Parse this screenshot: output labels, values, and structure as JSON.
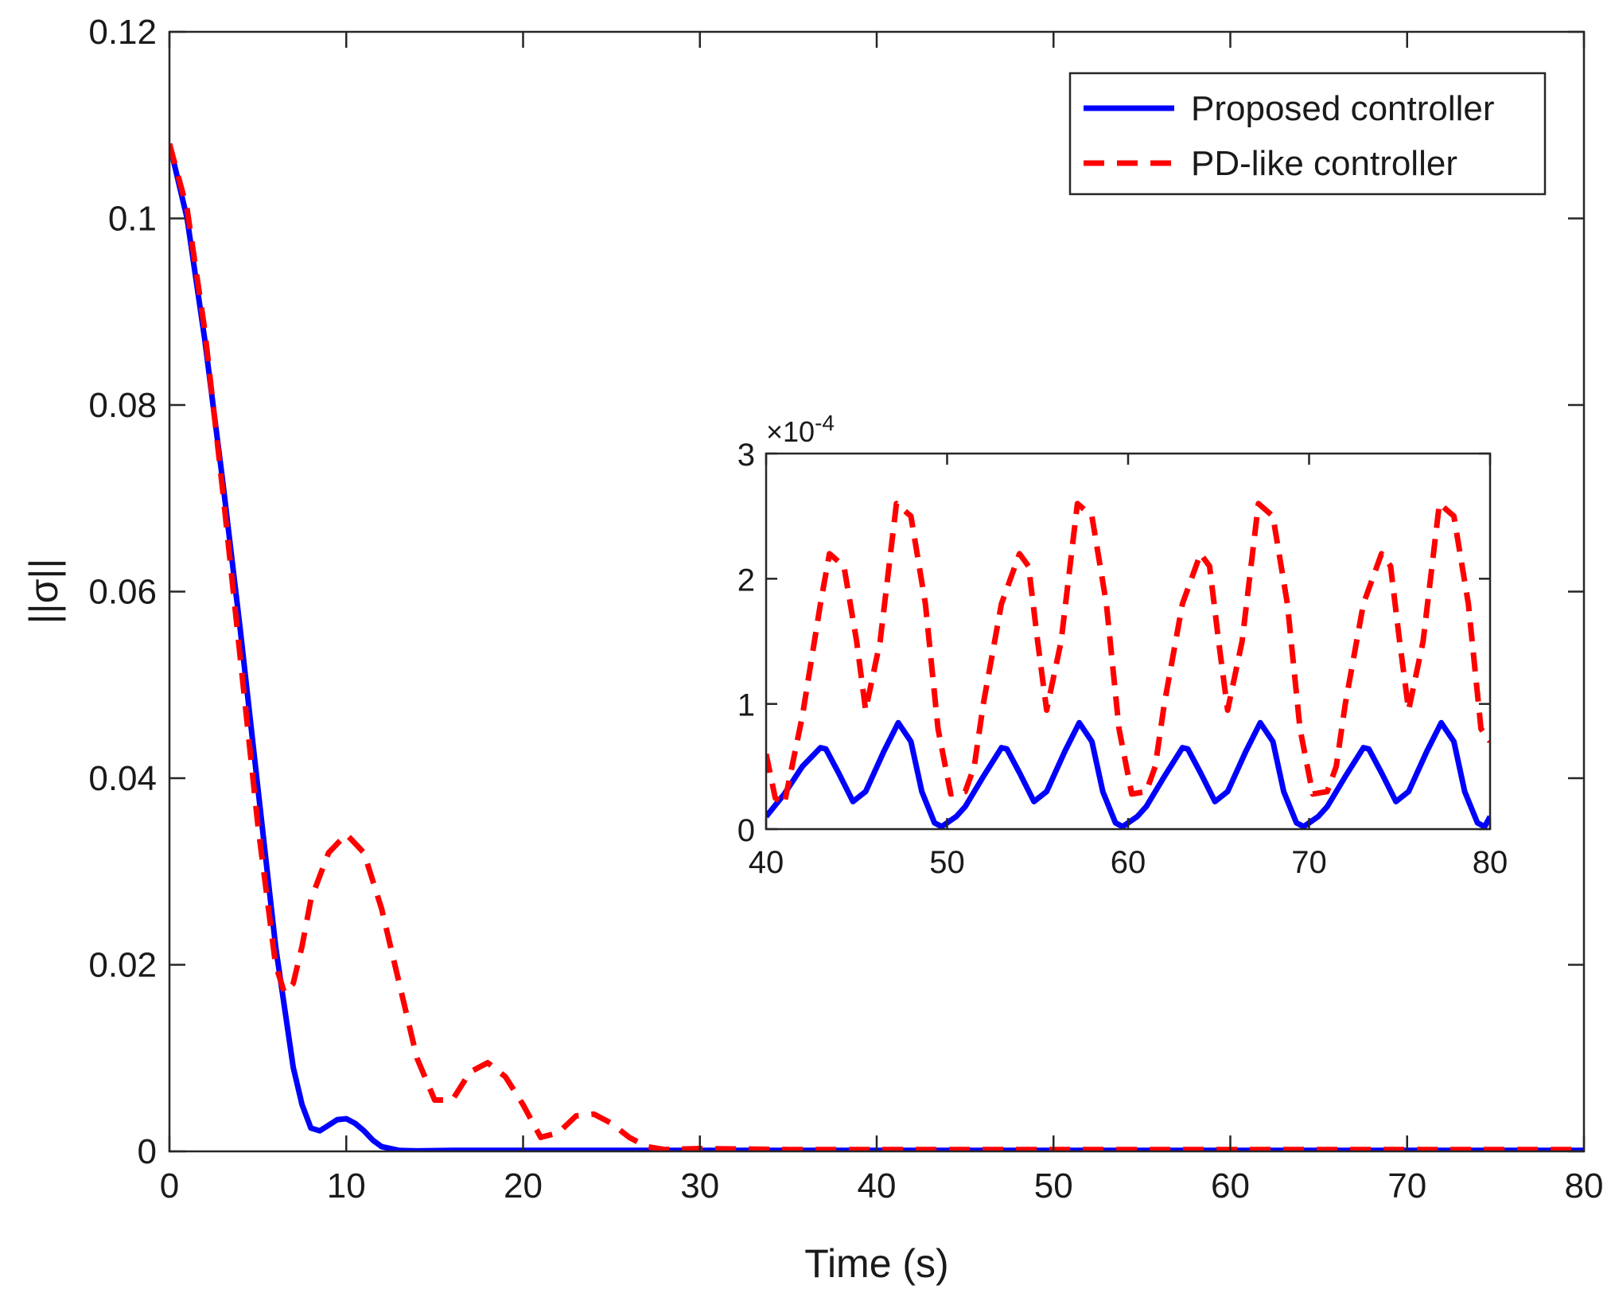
{
  "chart_data": [
    {
      "id": "main",
      "type": "line",
      "xlabel": "Time (s)",
      "ylabel": "||σ||",
      "xlim": [
        0,
        80
      ],
      "ylim": [
        0,
        0.12
      ],
      "xticks": [
        0,
        10,
        20,
        30,
        40,
        50,
        60,
        70,
        80
      ],
      "yticks": [
        0,
        0.02,
        0.04,
        0.06,
        0.08,
        0.1,
        0.12
      ],
      "xtick_labels": [
        "0",
        "10",
        "20",
        "30",
        "40",
        "50",
        "60",
        "70",
        "80"
      ],
      "ytick_labels": [
        "0",
        "0.02",
        "0.04",
        "0.06",
        "0.08",
        "0.1",
        "0.12"
      ],
      "grid": false,
      "legend": {
        "position": "top-right",
        "entries": [
          "Proposed controller",
          "PD-like controller"
        ]
      },
      "series": [
        {
          "name": "Proposed controller",
          "color": "#0000ff",
          "style": "solid",
          "x": [
            0,
            1,
            2,
            3,
            4,
            5,
            6,
            7,
            7.5,
            8,
            8.5,
            9,
            9.5,
            10,
            10.5,
            11,
            11.5,
            12,
            13,
            14,
            16,
            20,
            30,
            40,
            50,
            60,
            70,
            80
          ],
          "y": [
            0.108,
            0.1,
            0.087,
            0.072,
            0.056,
            0.039,
            0.022,
            0.009,
            0.005,
            0.0025,
            0.0022,
            0.0028,
            0.0034,
            0.0035,
            0.003,
            0.0022,
            0.0012,
            0.0005,
            0.0001,
            5e-05,
            0.0001,
            0.0001,
            0.0001,
            0.0001,
            0.0001,
            0.0001,
            0.0001,
            0.0001
          ]
        },
        {
          "name": "PD-like controller",
          "color": "#ff0000",
          "style": "dashed",
          "x": [
            0,
            1,
            2,
            3,
            4,
            5,
            6,
            6.5,
            7,
            7.5,
            8,
            9,
            10,
            11,
            12,
            13,
            14,
            15,
            16,
            17,
            18,
            19,
            20,
            21,
            22,
            23,
            24,
            25,
            26,
            27,
            28,
            30,
            35,
            40,
            50,
            60,
            70,
            80
          ],
          "y": [
            0.108,
            0.101,
            0.088,
            0.071,
            0.053,
            0.035,
            0.02,
            0.017,
            0.018,
            0.022,
            0.027,
            0.032,
            0.034,
            0.032,
            0.026,
            0.018,
            0.01,
            0.0055,
            0.0055,
            0.0085,
            0.0095,
            0.008,
            0.005,
            0.0015,
            0.002,
            0.0038,
            0.004,
            0.003,
            0.0015,
            0.0005,
            0.0002,
            0.0003,
            0.0002,
            0.0002,
            0.0002,
            0.0002,
            0.0002,
            0.0002
          ]
        }
      ]
    },
    {
      "id": "inset",
      "type": "line",
      "xlabel": "",
      "ylabel": "",
      "xlim": [
        40,
        80
      ],
      "ylim": [
        0,
        3
      ],
      "y_scale_label": "×10-4",
      "y_scale_base": "×10",
      "y_scale_exp": "-4",
      "xticks": [
        40,
        50,
        60,
        70,
        80
      ],
      "yticks": [
        0,
        1,
        2,
        3
      ],
      "xtick_labels": [
        "40",
        "50",
        "60",
        "70",
        "80"
      ],
      "ytick_labels": [
        "0",
        "1",
        "2",
        "3"
      ],
      "grid": false,
      "series": [
        {
          "name": "Proposed controller",
          "color": "#0000ff",
          "style": "solid",
          "x": [
            40,
            41,
            42,
            43,
            43.3,
            44,
            44.8,
            45.5,
            46.5,
            47.3,
            48,
            48.6,
            49.3,
            49.7,
            50.5,
            51,
            52,
            53,
            53.3,
            54,
            54.8,
            55.5,
            56.5,
            57.3,
            58,
            58.6,
            59.3,
            59.7,
            60.5,
            61,
            62,
            63,
            63.3,
            64,
            64.8,
            65.5,
            66.5,
            67.3,
            68,
            68.6,
            69.3,
            69.7,
            70.5,
            71,
            72,
            73,
            73.3,
            74,
            74.8,
            75.5,
            76.5,
            77.3,
            78,
            78.6,
            79.3,
            79.7,
            80
          ],
          "y": [
            0.1,
            0.28,
            0.5,
            0.65,
            0.64,
            0.45,
            0.22,
            0.3,
            0.62,
            0.85,
            0.7,
            0.3,
            0.05,
            0.02,
            0.1,
            0.18,
            0.42,
            0.65,
            0.64,
            0.45,
            0.22,
            0.3,
            0.62,
            0.85,
            0.7,
            0.3,
            0.05,
            0.02,
            0.1,
            0.18,
            0.42,
            0.65,
            0.64,
            0.45,
            0.22,
            0.3,
            0.62,
            0.85,
            0.7,
            0.3,
            0.05,
            0.02,
            0.1,
            0.18,
            0.42,
            0.65,
            0.64,
            0.45,
            0.22,
            0.3,
            0.62,
            0.85,
            0.7,
            0.3,
            0.05,
            0.02,
            0.1
          ]
        },
        {
          "name": "PD-like controller",
          "color": "#ff0000",
          "style": "dashed",
          "x": [
            40,
            40.5,
            41,
            42,
            43,
            43.5,
            44.3,
            45,
            45.5,
            46.3,
            47.2,
            48,
            48.8,
            49.5,
            50.2,
            51,
            51.5,
            52,
            53,
            54,
            54.5,
            55,
            55.5,
            56.3,
            57.2,
            58,
            58.8,
            59.5,
            60.2,
            61,
            61.5,
            62,
            63,
            64,
            64.5,
            65,
            65.5,
            66.3,
            67.2,
            68,
            68.8,
            69.5,
            70.2,
            71,
            71.5,
            72,
            73,
            74,
            74.5,
            75,
            75.5,
            76.3,
            77.2,
            78,
            78.8,
            79.5,
            80
          ],
          "y": [
            0.6,
            0.25,
            0.2,
            0.9,
            1.8,
            2.2,
            2.1,
            1.5,
            0.95,
            1.5,
            2.6,
            2.5,
            1.8,
            0.8,
            0.28,
            0.3,
            0.5,
            1.0,
            1.8,
            2.2,
            2.1,
            1.5,
            0.95,
            1.5,
            2.6,
            2.5,
            1.8,
            0.8,
            0.28,
            0.3,
            0.5,
            1.0,
            1.8,
            2.2,
            2.1,
            1.5,
            0.95,
            1.5,
            2.6,
            2.5,
            1.8,
            0.8,
            0.28,
            0.3,
            0.5,
            1.0,
            1.8,
            2.2,
            2.1,
            1.5,
            0.95,
            1.5,
            2.6,
            2.5,
            1.8,
            0.8,
            0.7
          ]
        }
      ]
    }
  ]
}
